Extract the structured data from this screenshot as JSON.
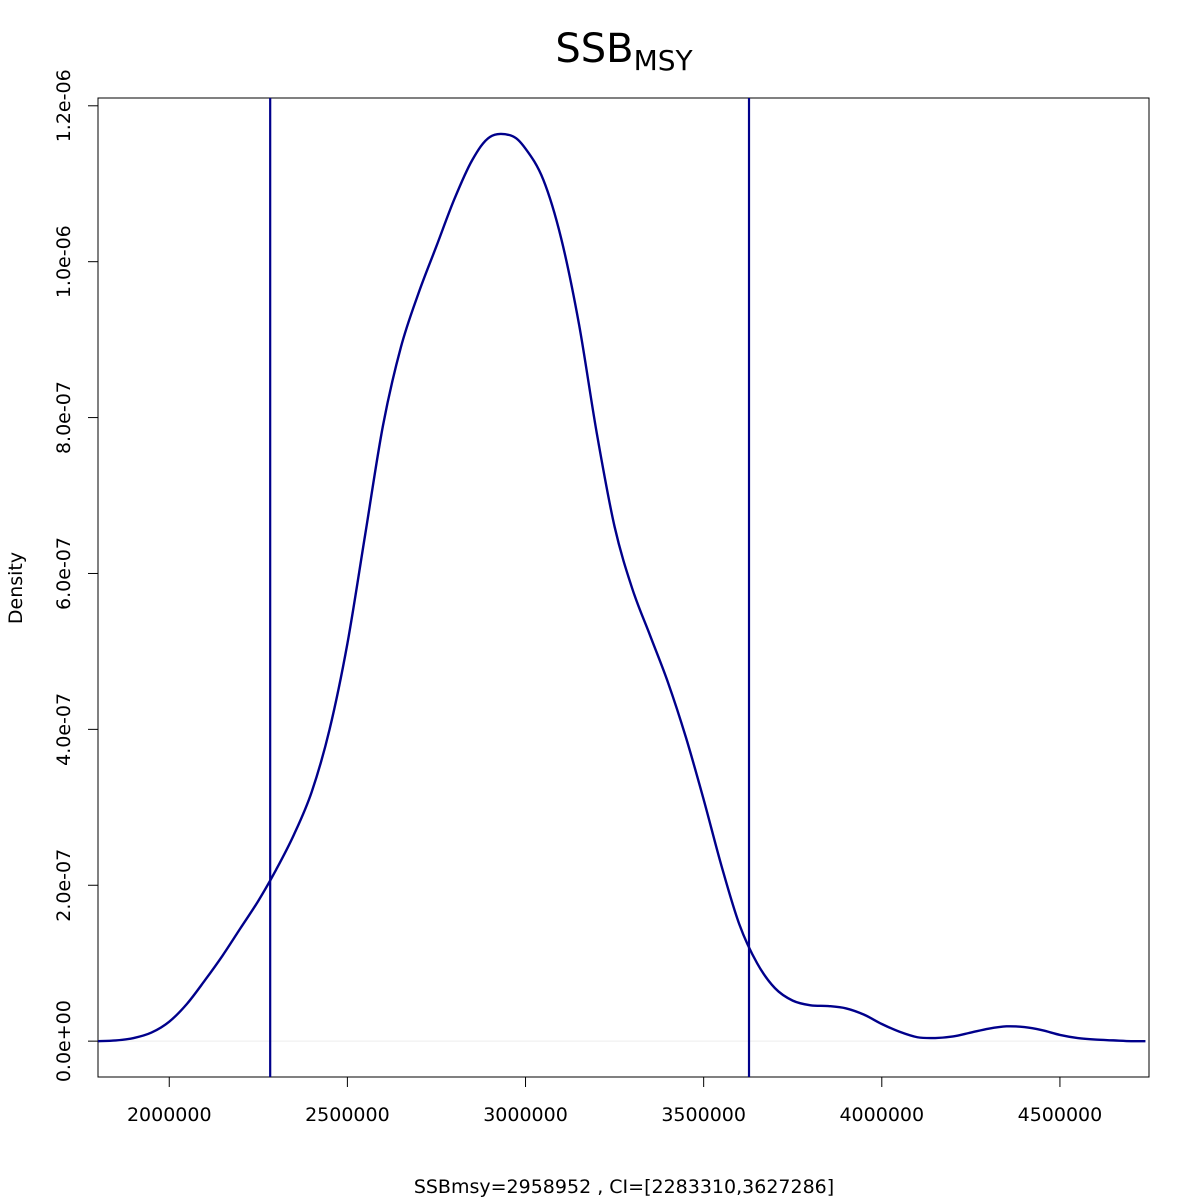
{
  "chart_data": {
    "type": "line",
    "title": "SSB",
    "title_subscript": "MSY",
    "xlabel": "SSBmsy=2958952 , CI=[2283310,3627286]",
    "ylabel": "Density",
    "xlim": [
      1800000,
      4750000
    ],
    "ylim": [
      -4.6e-08,
      1.21e-06
    ],
    "x_ticks": [
      2000000,
      2500000,
      3000000,
      3500000,
      4000000,
      4500000
    ],
    "x_tick_labels": [
      "2000000",
      "2500000",
      "3000000",
      "3500000",
      "4000000",
      "4500000"
    ],
    "y_ticks": [
      0,
      2e-07,
      4e-07,
      6e-07,
      8e-07,
      1e-06,
      1.2e-06
    ],
    "y_tick_labels": [
      "0.0e+00",
      "2.0e-07",
      "4.0e-07",
      "6.0e-07",
      "8.0e-07",
      "1.0e-06",
      "1.2e-06"
    ],
    "grid": false,
    "line_color": "#00008B",
    "baseline_color": "#eeeeee",
    "vlines": [
      2283310,
      3627286
    ],
    "series": [
      {
        "x": [
          1800000,
          1850000,
          1900000,
          1950000,
          2000000,
          2050000,
          2100000,
          2150000,
          2200000,
          2250000,
          2300000,
          2350000,
          2400000,
          2450000,
          2500000,
          2550000,
          2600000,
          2650000,
          2700000,
          2750000,
          2800000,
          2850000,
          2900000,
          2958000,
          3000000,
          3050000,
          3100000,
          3150000,
          3200000,
          3250000,
          3300000,
          3350000,
          3400000,
          3450000,
          3500000,
          3550000,
          3600000,
          3650000,
          3700000,
          3750000,
          3800000,
          3850000,
          3900000,
          3950000,
          4000000,
          4050000,
          4100000,
          4150000,
          4200000,
          4250000,
          4300000,
          4350000,
          4400000,
          4450000,
          4500000,
          4550000,
          4600000,
          4650000,
          4700000,
          4740000
        ],
        "values": [
          0,
          9e-10,
          4e-09,
          1.1e-08,
          2.5e-08,
          4.8e-08,
          7.8e-08,
          1.1e-07,
          1.45e-07,
          1.8e-07,
          2.2e-07,
          2.65e-07,
          3.2e-07,
          4e-07,
          5.1e-07,
          6.5e-07,
          7.9e-07,
          8.9e-07,
          9.6e-07,
          1.02e-06,
          1.08e-06,
          1.13e-06,
          1.16e-06,
          1.162e-06,
          1.145e-06,
          1.105e-06,
          1.03e-06,
          9.2e-07,
          7.8e-07,
          6.6e-07,
          5.8e-07,
          5.2e-07,
          4.6e-07,
          3.9e-07,
          3.1e-07,
          2.25e-07,
          1.5e-07,
          1e-07,
          6.8e-08,
          5.2e-08,
          4.6e-08,
          4.5e-08,
          4.2e-08,
          3.4e-08,
          2.2e-08,
          1.2e-08,
          5e-09,
          4e-09,
          6e-09,
          1.1e-08,
          1.6e-08,
          1.9e-08,
          1.8e-08,
          1.4e-08,
          8e-09,
          4e-09,
          2e-09,
          1e-09,
          0,
          0
        ]
      }
    ]
  }
}
